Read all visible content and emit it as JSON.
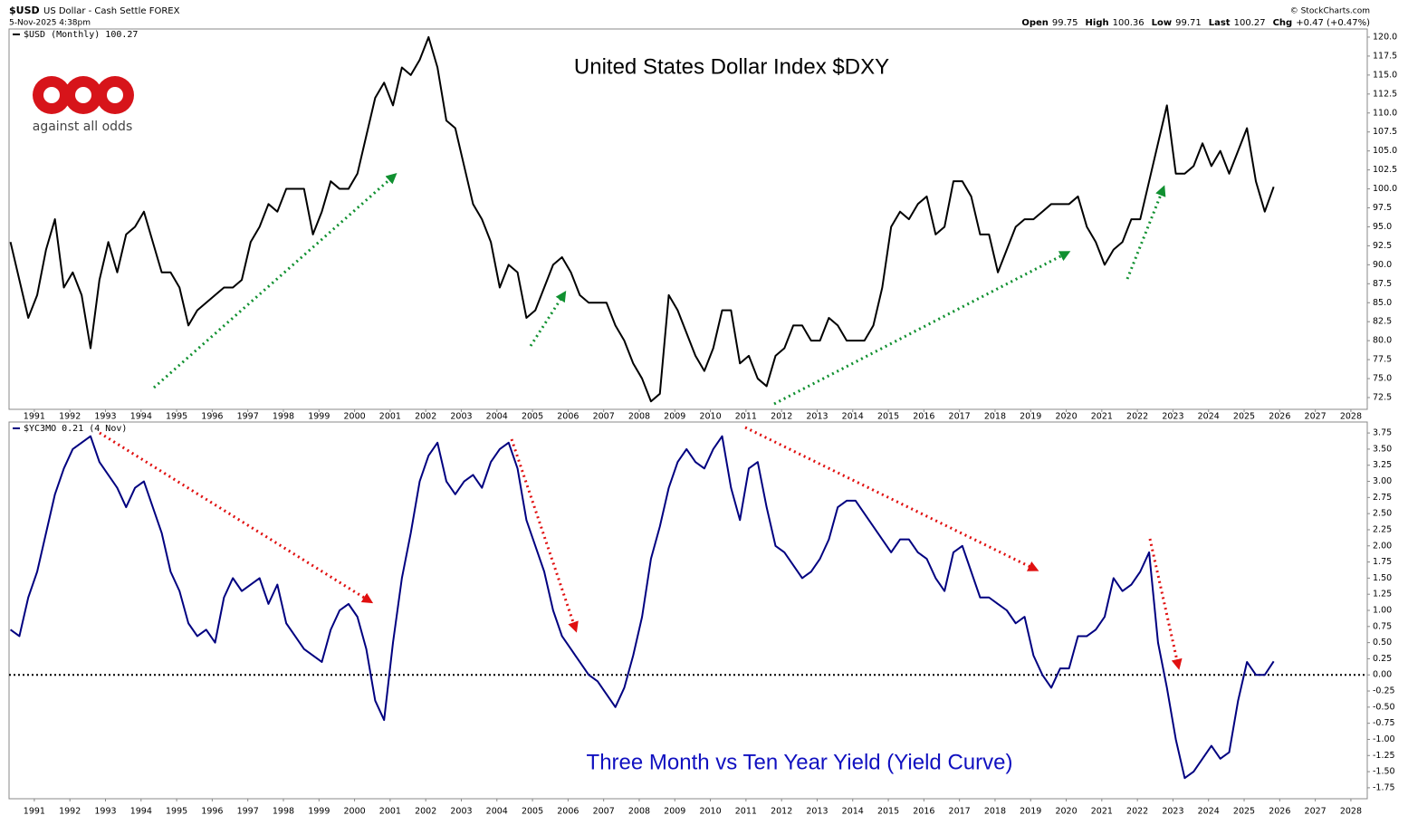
{
  "header": {
    "symbol": "$USD",
    "name": "US Dollar - Cash Settle FOREX",
    "date": "5-Nov-2025 4:38pm",
    "copyright": "© StockCharts.com",
    "quote": [
      {
        "label": "Open",
        "value": "99.75"
      },
      {
        "label": "High",
        "value": "100.36"
      },
      {
        "label": "Low",
        "value": "99.71"
      },
      {
        "label": "Last",
        "value": "100.27"
      },
      {
        "label": "Chg",
        "value": "+0.47 (+0.47%)"
      }
    ],
    "logo": "against all odds"
  },
  "chart_data": [
    {
      "type": "line",
      "title": "United States Dollar Index $DXY",
      "x": [
        1990.33,
        1990.58,
        1990.83,
        1991.08,
        1991.33,
        1991.58,
        1991.83,
        1992.08,
        1992.33,
        1992.58,
        1992.83,
        1993.08,
        1993.33,
        1993.58,
        1993.83,
        1994.08,
        1994.33,
        1994.58,
        1994.83,
        1995.08,
        1995.33,
        1995.58,
        1995.83,
        1996.08,
        1996.33,
        1996.58,
        1996.83,
        1997.08,
        1997.33,
        1997.58,
        1997.83,
        1998.08,
        1998.33,
        1998.58,
        1998.83,
        1999.08,
        1999.33,
        1999.58,
        1999.83,
        2000.08,
        2000.33,
        2000.58,
        2000.83,
        2001.08,
        2001.33,
        2001.58,
        2001.83,
        2002.08,
        2002.33,
        2002.58,
        2002.83,
        2003.08,
        2003.33,
        2003.58,
        2003.83,
        2004.08,
        2004.33,
        2004.58,
        2004.83,
        2005.08,
        2005.33,
        2005.58,
        2005.83,
        2006.08,
        2006.33,
        2006.58,
        2006.83,
        2007.08,
        2007.33,
        2007.58,
        2007.83,
        2008.08,
        2008.33,
        2008.58,
        2008.83,
        2009.08,
        2009.33,
        2009.58,
        2009.83,
        2010.08,
        2010.33,
        2010.58,
        2010.83,
        2011.08,
        2011.33,
        2011.58,
        2011.83,
        2012.08,
        2012.33,
        2012.58,
        2012.83,
        2013.08,
        2013.33,
        2013.58,
        2013.83,
        2014.08,
        2014.33,
        2014.58,
        2014.83,
        2015.08,
        2015.33,
        2015.58,
        2015.83,
        2016.08,
        2016.33,
        2016.58,
        2016.83,
        2017.08,
        2017.33,
        2017.58,
        2017.83,
        2018.08,
        2018.33,
        2018.58,
        2018.83,
        2019.08,
        2019.33,
        2019.58,
        2019.83,
        2020.08,
        2020.33,
        2020.58,
        2020.83,
        2021.08,
        2021.33,
        2021.58,
        2021.83,
        2022.08,
        2022.33,
        2022.58,
        2022.83,
        2023.08,
        2023.33,
        2023.58,
        2023.83,
        2024.08,
        2024.33,
        2024.58,
        2024.83,
        2025.08,
        2025.33,
        2025.58,
        2025.83
      ],
      "series": [
        {
          "name": "$USD (Monthly) 100.27",
          "color": "#000000",
          "values": [
            93,
            88,
            83,
            86,
            92,
            96,
            87,
            89,
            86,
            79,
            88,
            93,
            89,
            94,
            95,
            97,
            93,
            89,
            89,
            87,
            82,
            84,
            85,
            86,
            87,
            87,
            88,
            93,
            95,
            98,
            97,
            100,
            100,
            100,
            94,
            97,
            101,
            100,
            100,
            102,
            107,
            112,
            114,
            111,
            116,
            115,
            117,
            120,
            116,
            109,
            108,
            103,
            98,
            96,
            93,
            87,
            90,
            89,
            83,
            84,
            87,
            90,
            91,
            89,
            86,
            85,
            85,
            85,
            82,
            80,
            77,
            75,
            72,
            73,
            86,
            84,
            81,
            78,
            76,
            79,
            84,
            84,
            77,
            78,
            75,
            74,
            78,
            79,
            82,
            82,
            80,
            80,
            83,
            82,
            80,
            80,
            80,
            82,
            87,
            95,
            97,
            96,
            98,
            99,
            94,
            95,
            101,
            101,
            99,
            94,
            94,
            89,
            92,
            95,
            96,
            96,
            97,
            98,
            98,
            98,
            99,
            95,
            93,
            90,
            92,
            93,
            96,
            96,
            101,
            106,
            111,
            102,
            102,
            103,
            106,
            103,
            105,
            102,
            105,
            108,
            101,
            97,
            100.27
          ]
        }
      ],
      "xlim": [
        1990.29,
        2028.46
      ],
      "xticks": [
        1991,
        1992,
        1993,
        1994,
        1995,
        1996,
        1997,
        1998,
        1999,
        2000,
        2001,
        2002,
        2003,
        2004,
        2005,
        2006,
        2007,
        2008,
        2009,
        2010,
        2011,
        2012,
        2013,
        2014,
        2015,
        2016,
        2017,
        2018,
        2019,
        2020,
        2021,
        2022,
        2023,
        2024,
        2025,
        2026,
        2027,
        2028
      ],
      "ylim": [
        70.95,
        121.07
      ],
      "yticks": [
        {
          "value": 72.5,
          "label": "72.5"
        },
        {
          "value": 75,
          "label": "75.0"
        },
        {
          "value": 77.5,
          "label": "77.5"
        },
        {
          "value": 80,
          "label": "80.0"
        },
        {
          "value": 82.5,
          "label": "82.5"
        },
        {
          "value": 85,
          "label": "85.0"
        },
        {
          "value": 87.5,
          "label": "87.5"
        },
        {
          "value": 90,
          "label": "90.0"
        },
        {
          "value": 92.5,
          "label": "92.5"
        },
        {
          "value": 95,
          "label": "95.0"
        },
        {
          "value": 97.5,
          "label": "97.5"
        },
        {
          "value": 100,
          "label": "100.0"
        },
        {
          "value": 102.5,
          "label": "102.5"
        },
        {
          "value": 105,
          "label": "105.0"
        },
        {
          "value": 107.5,
          "label": "107.5"
        },
        {
          "value": 110,
          "label": "110.0"
        },
        {
          "value": 112.5,
          "label": "112.5"
        },
        {
          "value": 115,
          "label": "115.0"
        },
        {
          "value": 117.5,
          "label": "117.5"
        },
        {
          "value": 120,
          "label": "120.0"
        }
      ],
      "grid": false
    },
    {
      "type": "line",
      "title": "Three Month vs Ten Year Yield (Yield Curve)",
      "x": [
        1990.33,
        1990.58,
        1990.83,
        1991.08,
        1991.33,
        1991.58,
        1991.83,
        1992.08,
        1992.33,
        1992.58,
        1992.83,
        1993.08,
        1993.33,
        1993.58,
        1993.83,
        1994.08,
        1994.33,
        1994.58,
        1994.83,
        1995.08,
        1995.33,
        1995.58,
        1995.83,
        1996.08,
        1996.33,
        1996.58,
        1996.83,
        1997.08,
        1997.33,
        1997.58,
        1997.83,
        1998.08,
        1998.33,
        1998.58,
        1998.83,
        1999.08,
        1999.33,
        1999.58,
        1999.83,
        2000.08,
        2000.33,
        2000.58,
        2000.83,
        2001.08,
        2001.33,
        2001.58,
        2001.83,
        2002.08,
        2002.33,
        2002.58,
        2002.83,
        2003.08,
        2003.33,
        2003.58,
        2003.83,
        2004.08,
        2004.33,
        2004.58,
        2004.83,
        2005.08,
        2005.33,
        2005.58,
        2005.83,
        2006.08,
        2006.33,
        2006.58,
        2006.83,
        2007.08,
        2007.33,
        2007.58,
        2007.83,
        2008.08,
        2008.33,
        2008.58,
        2008.83,
        2009.08,
        2009.33,
        2009.58,
        2009.83,
        2010.08,
        2010.33,
        2010.58,
        2010.83,
        2011.08,
        2011.33,
        2011.58,
        2011.83,
        2012.08,
        2012.33,
        2012.58,
        2012.83,
        2013.08,
        2013.33,
        2013.58,
        2013.83,
        2014.08,
        2014.33,
        2014.58,
        2014.83,
        2015.08,
        2015.33,
        2015.58,
        2015.83,
        2016.08,
        2016.33,
        2016.58,
        2016.83,
        2017.08,
        2017.33,
        2017.58,
        2017.83,
        2018.08,
        2018.33,
        2018.58,
        2018.83,
        2019.08,
        2019.33,
        2019.58,
        2019.83,
        2020.08,
        2020.33,
        2020.58,
        2020.83,
        2021.08,
        2021.33,
        2021.58,
        2021.83,
        2022.08,
        2022.33,
        2022.58,
        2022.83,
        2023.08,
        2023.33,
        2023.58,
        2023.83,
        2024.08,
        2024.33,
        2024.58,
        2024.83,
        2025.08,
        2025.33,
        2025.58,
        2025.83
      ],
      "series": [
        {
          "name": "$YC3MO 0.21 (4 Nov)",
          "color": "#000080",
          "values": [
            0.7,
            0.6,
            1.2,
            1.6,
            2.2,
            2.8,
            3.2,
            3.5,
            3.6,
            3.7,
            3.3,
            3.1,
            2.9,
            2.6,
            2.9,
            3.0,
            2.6,
            2.2,
            1.6,
            1.3,
            0.8,
            0.6,
            0.7,
            0.5,
            1.2,
            1.5,
            1.3,
            1.4,
            1.5,
            1.1,
            1.4,
            0.8,
            0.6,
            0.4,
            0.3,
            0.2,
            0.7,
            1.0,
            1.1,
            0.9,
            0.4,
            -0.4,
            -0.7,
            0.5,
            1.5,
            2.2,
            3.0,
            3.4,
            3.6,
            3.0,
            2.8,
            3.0,
            3.1,
            2.9,
            3.3,
            3.5,
            3.6,
            3.2,
            2.4,
            2.0,
            1.6,
            1.0,
            0.6,
            0.4,
            0.2,
            0.0,
            -0.1,
            -0.3,
            -0.5,
            -0.2,
            0.3,
            0.9,
            1.8,
            2.3,
            2.9,
            3.3,
            3.5,
            3.3,
            3.2,
            3.5,
            3.7,
            2.9,
            2.4,
            3.2,
            3.3,
            2.6,
            2.0,
            1.9,
            1.7,
            1.5,
            1.6,
            1.8,
            2.1,
            2.6,
            2.7,
            2.7,
            2.5,
            2.3,
            2.1,
            1.9,
            2.1,
            2.1,
            1.9,
            1.8,
            1.5,
            1.3,
            1.9,
            2.0,
            1.6,
            1.2,
            1.2,
            1.1,
            1.0,
            0.8,
            0.9,
            0.3,
            0.0,
            -0.2,
            0.1,
            0.1,
            0.6,
            0.6,
            0.7,
            0.9,
            1.5,
            1.3,
            1.4,
            1.6,
            1.9,
            0.5,
            -0.2,
            -1.0,
            -1.6,
            -1.5,
            -1.3,
            -1.1,
            -1.3,
            -1.2,
            -0.4,
            0.2,
            0.0,
            0.0,
            0.21
          ]
        }
      ],
      "reference_line": 0,
      "xlim": [
        1990.29,
        2028.46
      ],
      "xticks": [
        1991,
        1992,
        1993,
        1994,
        1995,
        1996,
        1997,
        1998,
        1999,
        2000,
        2001,
        2002,
        2003,
        2004,
        2005,
        2006,
        2007,
        2008,
        2009,
        2010,
        2011,
        2012,
        2013,
        2014,
        2015,
        2016,
        2017,
        2018,
        2019,
        2020,
        2021,
        2022,
        2023,
        2024,
        2025,
        2026,
        2027,
        2028
      ],
      "ylim": [
        -1.92,
        3.92
      ],
      "yticks": [
        {
          "value": -1.75,
          "label": "-1.75"
        },
        {
          "value": -1.5,
          "label": "-1.50"
        },
        {
          "value": -1.25,
          "label": "-1.25"
        },
        {
          "value": -1,
          "label": "-1.00"
        },
        {
          "value": -0.75,
          "label": "-0.75"
        },
        {
          "value": -0.5,
          "label": "-0.50"
        },
        {
          "value": -0.25,
          "label": "-0.25"
        },
        {
          "value": 0,
          "label": "0.00"
        },
        {
          "value": 0.25,
          "label": "0.25"
        },
        {
          "value": 0.5,
          "label": "0.50"
        },
        {
          "value": 0.75,
          "label": "0.75"
        },
        {
          "value": 1,
          "label": "1.00"
        },
        {
          "value": 1.25,
          "label": "1.25"
        },
        {
          "value": 1.5,
          "label": "1.50"
        },
        {
          "value": 1.75,
          "label": "1.75"
        },
        {
          "value": 2,
          "label": "2.00"
        },
        {
          "value": 2.25,
          "label": "2.25"
        },
        {
          "value": 2.5,
          "label": "2.50"
        },
        {
          "value": 2.75,
          "label": "2.75"
        },
        {
          "value": 3,
          "label": "3.00"
        },
        {
          "value": 3.25,
          "label": "3.25"
        },
        {
          "value": 3.5,
          "label": "3.50"
        },
        {
          "value": 3.75,
          "label": "3.75"
        }
      ],
      "grid": false
    }
  ]
}
